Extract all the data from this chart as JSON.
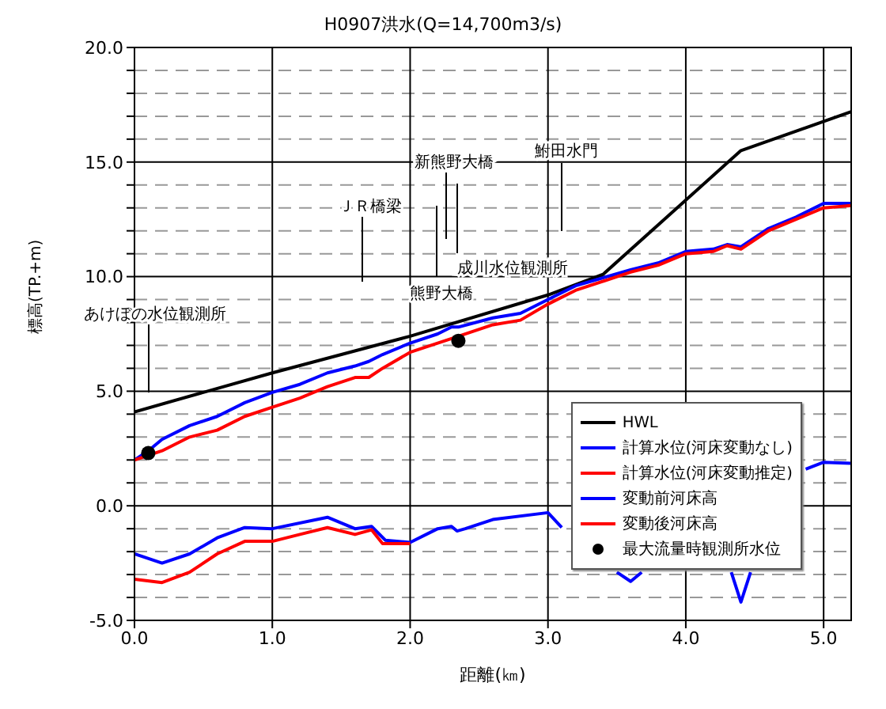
{
  "chart_data": {
    "type": "line",
    "title": "H0907洪水(Q=14,700m3/s)",
    "xlabel": "距離(㎞)",
    "ylabel": "標高(TP.+m)",
    "xlim": [
      0,
      5.2
    ],
    "ylim": [
      -5,
      20
    ],
    "xticks": [
      {
        "value": 0,
        "label": "0.0"
      },
      {
        "value": 1,
        "label": "1.0"
      },
      {
        "value": 2,
        "label": "2.0"
      },
      {
        "value": 3,
        "label": "3.0"
      },
      {
        "value": 4,
        "label": "4.0"
      },
      {
        "value": 5,
        "label": "5.0"
      }
    ],
    "yticks": [
      {
        "value": -5,
        "label": "-5.0"
      },
      {
        "value": -4,
        "label": null
      },
      {
        "value": -3,
        "label": null
      },
      {
        "value": -2,
        "label": null
      },
      {
        "value": -1,
        "label": null
      },
      {
        "value": 0,
        "label": "0.0"
      },
      {
        "value": 1,
        "label": null
      },
      {
        "value": 2,
        "label": null
      },
      {
        "value": 3,
        "label": null
      },
      {
        "value": 4,
        "label": null
      },
      {
        "value": 5,
        "label": "5.0"
      },
      {
        "value": 6,
        "label": null
      },
      {
        "value": 7,
        "label": null
      },
      {
        "value": 8,
        "label": null
      },
      {
        "value": 9,
        "label": null
      },
      {
        "value": 10,
        "label": "10.0"
      },
      {
        "value": 11,
        "label": null
      },
      {
        "value": 12,
        "label": null
      },
      {
        "value": 13,
        "label": null
      },
      {
        "value": 14,
        "label": null
      },
      {
        "value": 15,
        "label": "15.0"
      },
      {
        "value": 16,
        "label": null
      },
      {
        "value": 17,
        "label": null
      },
      {
        "value": 18,
        "label": null
      },
      {
        "value": 19,
        "label": null
      },
      {
        "value": 20,
        "label": "20.0"
      }
    ],
    "grid": true,
    "legend": "bottom right",
    "marker": "none",
    "line_style": "solid",
    "series": [
      {
        "name": "HWL",
        "color": "#000000",
        "x": [
          0,
          1,
          2,
          3,
          3.4,
          4.4,
          5.2
        ],
        "values": [
          4.1,
          5.8,
          7.4,
          9.2,
          10.1,
          15.5,
          17.2
        ]
      },
      {
        "name": "計算水位(河床変動なし)",
        "color": "#0000ff",
        "x": [
          0,
          0.1,
          0.2,
          0.4,
          0.6,
          0.8,
          1.0,
          1.2,
          1.4,
          1.6,
          1.7,
          1.8,
          2.0,
          2.2,
          2.3,
          2.35,
          2.6,
          2.8,
          3.0,
          3.2,
          3.6,
          3.8,
          4.0,
          4.2,
          4.3,
          4.4,
          4.6,
          4.8,
          5.0,
          5.2
        ],
        "values": [
          2.0,
          2.4,
          2.9,
          3.5,
          3.9,
          4.5,
          4.95,
          5.3,
          5.8,
          6.1,
          6.3,
          6.6,
          7.1,
          7.5,
          7.8,
          7.8,
          8.2,
          8.4,
          9.0,
          9.6,
          10.3,
          10.6,
          11.1,
          11.2,
          11.4,
          11.3,
          12.1,
          12.6,
          13.2,
          13.2
        ]
      },
      {
        "name": "計算水位(河床変動推定)",
        "color": "#ff0000",
        "x": [
          0,
          0.2,
          0.4,
          0.6,
          0.8,
          1.0,
          1.2,
          1.4,
          1.6,
          1.7,
          1.8,
          2.0,
          2.2,
          2.3,
          2.6,
          2.8,
          3.0,
          3.2,
          3.6,
          3.8,
          4.0,
          4.2,
          4.3,
          4.4,
          4.6,
          4.8,
          5.0,
          5.2
        ],
        "values": [
          2.0,
          2.4,
          3.0,
          3.3,
          3.9,
          4.3,
          4.7,
          5.2,
          5.6,
          5.6,
          6.0,
          6.7,
          7.1,
          7.3,
          7.9,
          8.1,
          8.8,
          9.4,
          10.2,
          10.5,
          11.0,
          11.1,
          11.35,
          11.2,
          12.0,
          12.5,
          13.0,
          13.1
        ]
      },
      {
        "name": "変動前河床高",
        "color": "#0000ff",
        "x": [
          0,
          0.2,
          0.4,
          0.6,
          0.8,
          1.0,
          1.4,
          1.6,
          1.72,
          1.82,
          2.0,
          2.2,
          2.3,
          2.34,
          2.4,
          2.6,
          3.0,
          3.1,
          3.3,
          3.5,
          3.6,
          3.68,
          4.0,
          4.33,
          4.4,
          4.47,
          4.7,
          4.87,
          5.0,
          5.2
        ],
        "values": [
          -2.1,
          -2.5,
          -2.1,
          -1.4,
          -0.95,
          -1.0,
          -0.5,
          -1.0,
          -0.9,
          -1.5,
          -1.6,
          -1.0,
          -0.9,
          -1.1,
          -1.0,
          -0.6,
          -0.3,
          -0.95,
          null,
          -2.9,
          -3.3,
          -2.9,
          null,
          -2.9,
          -4.2,
          -2.9,
          null,
          1.6,
          1.9,
          1.85
        ]
      },
      {
        "name": "変動後河床高",
        "color": "#ff0000",
        "x": [
          0,
          0.2,
          0.4,
          0.6,
          0.8,
          1.0,
          1.2,
          1.4,
          1.6,
          1.72,
          1.8,
          2.0
        ],
        "values": [
          -3.2,
          -3.35,
          -2.9,
          -2.1,
          -1.55,
          -1.55,
          -1.25,
          -0.95,
          -1.25,
          -1.05,
          -1.65,
          -1.65
        ]
      },
      {
        "name": "最大流量時観測所水位",
        "type": "scatter",
        "marker": "circle",
        "color": "#000000",
        "x": [
          0.1,
          2.35
        ],
        "values": [
          2.3,
          7.2
        ]
      }
    ],
    "annotations": [
      "あけぼの水位観測所",
      "ＪＲ橋梁",
      "熊野大橋",
      "新熊野大橋",
      "成川水位観測所",
      "鮒田水門"
    ]
  }
}
